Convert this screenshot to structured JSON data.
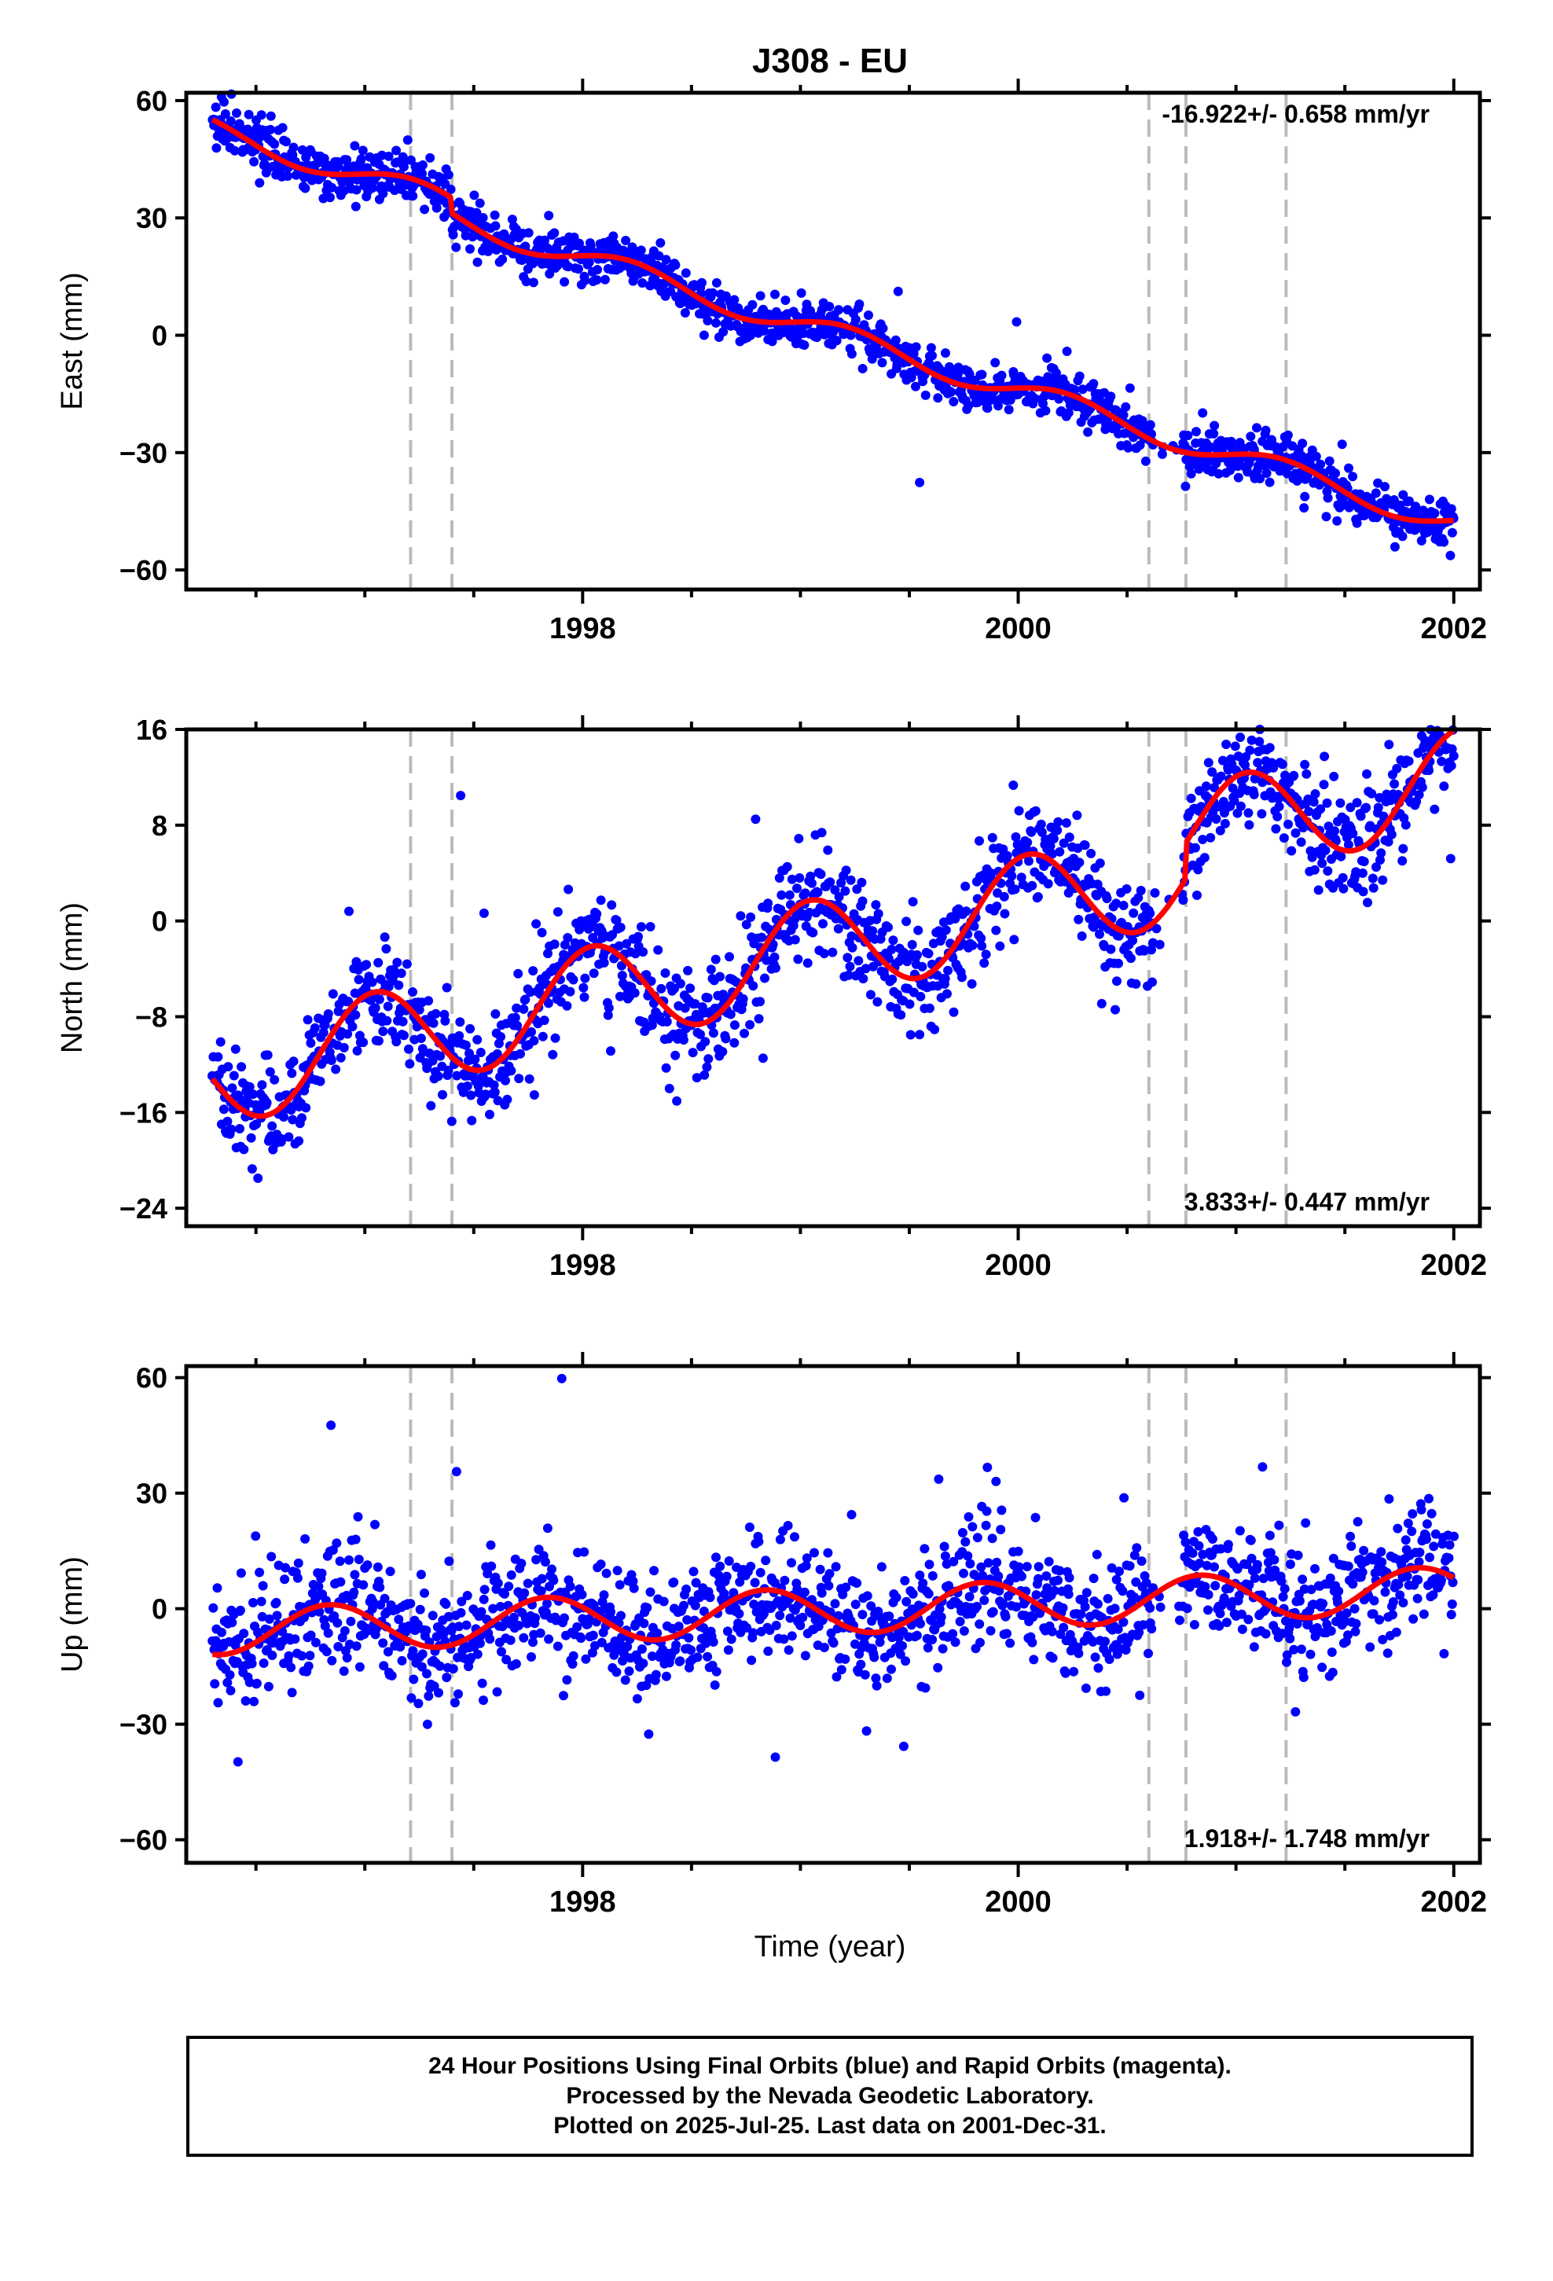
{
  "title": "J308 - EU",
  "xlabel": "Time (year)",
  "footer": {
    "line1": "24 Hour Positions Using Final Orbits (blue) and Rapid Orbits (magenta).",
    "line2": "Processed by the Nevada Geodetic Laboratory.",
    "line3": "Plotted on 2025-Jul-25. Last data on 2001-Dec-31."
  },
  "colors": {
    "points": "#0000ff",
    "model": "#ff0000",
    "breaks": "#bbbbbb",
    "axis": "#000000"
  },
  "chart_data": [
    {
      "type": "scatter",
      "component": "east",
      "ylabel": "East (mm)",
      "rate": "-16.922+/- 0.658 mm/yr",
      "rate_position": "top-right",
      "xlim": [
        1996.18,
        2002.12
      ],
      "ylim": [
        -65,
        62
      ],
      "yticks": [
        60,
        30,
        0,
        -30,
        -60
      ],
      "xticks": [
        1998,
        2000,
        2002
      ],
      "break_lines": [
        1997.21,
        1997.4,
        2000.6,
        2000.77,
        2001.23
      ],
      "trend": {
        "t0": 1996.3,
        "y0": 52.5,
        "slope": -16.922,
        "annual_amp": 3.0,
        "annual_phase": 0.2,
        "noise": 3.0,
        "steps": [
          [
            1997.4,
            -4.0
          ]
        ],
        "t_end": 2002.0
      }
    },
    {
      "type": "scatter",
      "component": "north",
      "ylabel": "North (mm)",
      "rate": "3.833+/- 0.447 mm/yr",
      "rate_position": "bottom-right",
      "xlim": [
        1996.18,
        2002.12
      ],
      "ylim": [
        -25.5,
        16
      ],
      "yticks": [
        16,
        8,
        0,
        -8,
        -16,
        -24
      ],
      "xticks": [
        1998,
        2000,
        2002
      ],
      "break_lines": [
        1997.21,
        1997.4,
        2000.6,
        2000.77,
        2001.23
      ],
      "trend": {
        "t0": 1996.3,
        "y0": -13.0,
        "slope": 3.833,
        "annual_amp": 4.2,
        "annual_phase": 1.3,
        "noise": 2.2,
        "steps": [
          [
            2000.77,
            3.0
          ]
        ],
        "t_end": 2002.0
      }
    },
    {
      "type": "scatter",
      "component": "up",
      "ylabel": "Up (mm)",
      "rate": "1.918+/- 1.748 mm/yr",
      "rate_position": "bottom-right",
      "xlim": [
        1996.18,
        2002.12
      ],
      "ylim": [
        -66,
        63
      ],
      "yticks": [
        60,
        30,
        0,
        -30,
        -60
      ],
      "xticks": [
        1998,
        2000,
        2002
      ],
      "break_lines": [
        1997.21,
        1997.4,
        2000.6,
        2000.77,
        2001.23
      ],
      "trend": {
        "t0": 1996.3,
        "y0": -6.0,
        "slope": 1.918,
        "annual_amp": 6.0,
        "annual_phase": 2.6,
        "noise": 8.0,
        "steps": [],
        "t_end": 2002.0
      }
    }
  ]
}
